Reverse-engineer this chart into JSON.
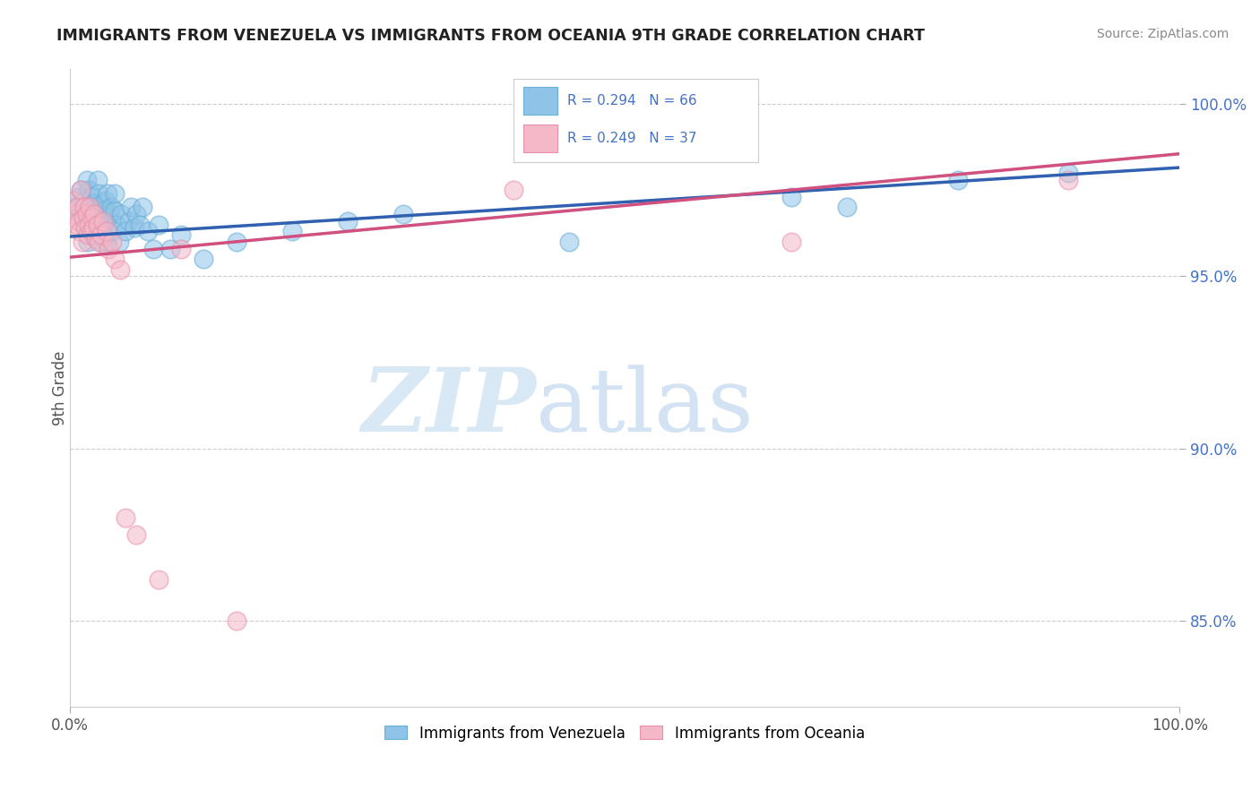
{
  "title": "IMMIGRANTS FROM VENEZUELA VS IMMIGRANTS FROM OCEANIA 9TH GRADE CORRELATION CHART",
  "source": "Source: ZipAtlas.com",
  "ylabel": "9th Grade",
  "legend_blue_label": "Immigrants from Venezuela",
  "legend_pink_label": "Immigrants from Oceania",
  "legend_blue_r": "R = 0.294",
  "legend_blue_n": "N = 66",
  "legend_pink_r": "R = 0.249",
  "legend_pink_n": "N = 37",
  "ytick_labels": [
    "85.0%",
    "90.0%",
    "95.0%",
    "100.0%"
  ],
  "ytick_values": [
    0.85,
    0.9,
    0.95,
    1.0
  ],
  "blue_color": "#8fc4e8",
  "blue_edge_color": "#6baed6",
  "pink_color": "#f4b8c8",
  "pink_edge_color": "#e891aa",
  "blue_line_color": "#3060b0",
  "pink_line_color": "#d05080",
  "background_color": "#ffffff",
  "watermark_zip": "ZIP",
  "watermark_atlas": "atlas",
  "xlim": [
    0.0,
    1.0
  ],
  "ylim": [
    0.825,
    1.01
  ],
  "blue_scatter_x": [
    0.005,
    0.008,
    0.01,
    0.01,
    0.012,
    0.013,
    0.015,
    0.015,
    0.016,
    0.017,
    0.018,
    0.018,
    0.02,
    0.02,
    0.021,
    0.022,
    0.022,
    0.023,
    0.024,
    0.024,
    0.025,
    0.025,
    0.026,
    0.026,
    0.027,
    0.028,
    0.029,
    0.03,
    0.03,
    0.031,
    0.032,
    0.032,
    0.033,
    0.034,
    0.035,
    0.035,
    0.036,
    0.037,
    0.038,
    0.04,
    0.04,
    0.042,
    0.044,
    0.046,
    0.05,
    0.053,
    0.055,
    0.058,
    0.06,
    0.063,
    0.065,
    0.07,
    0.075,
    0.08,
    0.09,
    0.1,
    0.12,
    0.15,
    0.2,
    0.25,
    0.3,
    0.45,
    0.65,
    0.7,
    0.8,
    0.9
  ],
  "blue_scatter_y": [
    0.97,
    0.973,
    0.968,
    0.975,
    0.965,
    0.972,
    0.978,
    0.966,
    0.96,
    0.975,
    0.963,
    0.97,
    0.968,
    0.973,
    0.962,
    0.967,
    0.971,
    0.964,
    0.97,
    0.966,
    0.978,
    0.962,
    0.969,
    0.974,
    0.96,
    0.965,
    0.971,
    0.968,
    0.963,
    0.969,
    0.966,
    0.972,
    0.96,
    0.974,
    0.967,
    0.963,
    0.968,
    0.97,
    0.963,
    0.969,
    0.974,
    0.965,
    0.96,
    0.968,
    0.963,
    0.966,
    0.97,
    0.964,
    0.968,
    0.965,
    0.97,
    0.963,
    0.958,
    0.965,
    0.958,
    0.962,
    0.955,
    0.96,
    0.963,
    0.966,
    0.968,
    0.96,
    0.973,
    0.97,
    0.978,
    0.98
  ],
  "pink_scatter_x": [
    0.003,
    0.005,
    0.006,
    0.007,
    0.008,
    0.009,
    0.01,
    0.011,
    0.012,
    0.013,
    0.014,
    0.015,
    0.016,
    0.017,
    0.018,
    0.019,
    0.02,
    0.021,
    0.022,
    0.023,
    0.025,
    0.026,
    0.028,
    0.03,
    0.033,
    0.035,
    0.038,
    0.04,
    0.045,
    0.05,
    0.06,
    0.08,
    0.1,
    0.15,
    0.4,
    0.65,
    0.9
  ],
  "pink_scatter_y": [
    0.972,
    0.968,
    0.965,
    0.97,
    0.966,
    0.963,
    0.975,
    0.96,
    0.967,
    0.97,
    0.964,
    0.968,
    0.962,
    0.965,
    0.97,
    0.963,
    0.967,
    0.964,
    0.968,
    0.961,
    0.965,
    0.96,
    0.962,
    0.966,
    0.963,
    0.958,
    0.96,
    0.955,
    0.952,
    0.88,
    0.875,
    0.862,
    0.958,
    0.85,
    0.975,
    0.96,
    0.978
  ],
  "blue_line_x0": 0.0,
  "blue_line_y0": 0.9615,
  "blue_line_x1": 1.0,
  "blue_line_y1": 0.9815,
  "pink_line_x0": 0.0,
  "pink_line_y0": 0.9555,
  "pink_line_x1": 1.0,
  "pink_line_y1": 0.9855
}
